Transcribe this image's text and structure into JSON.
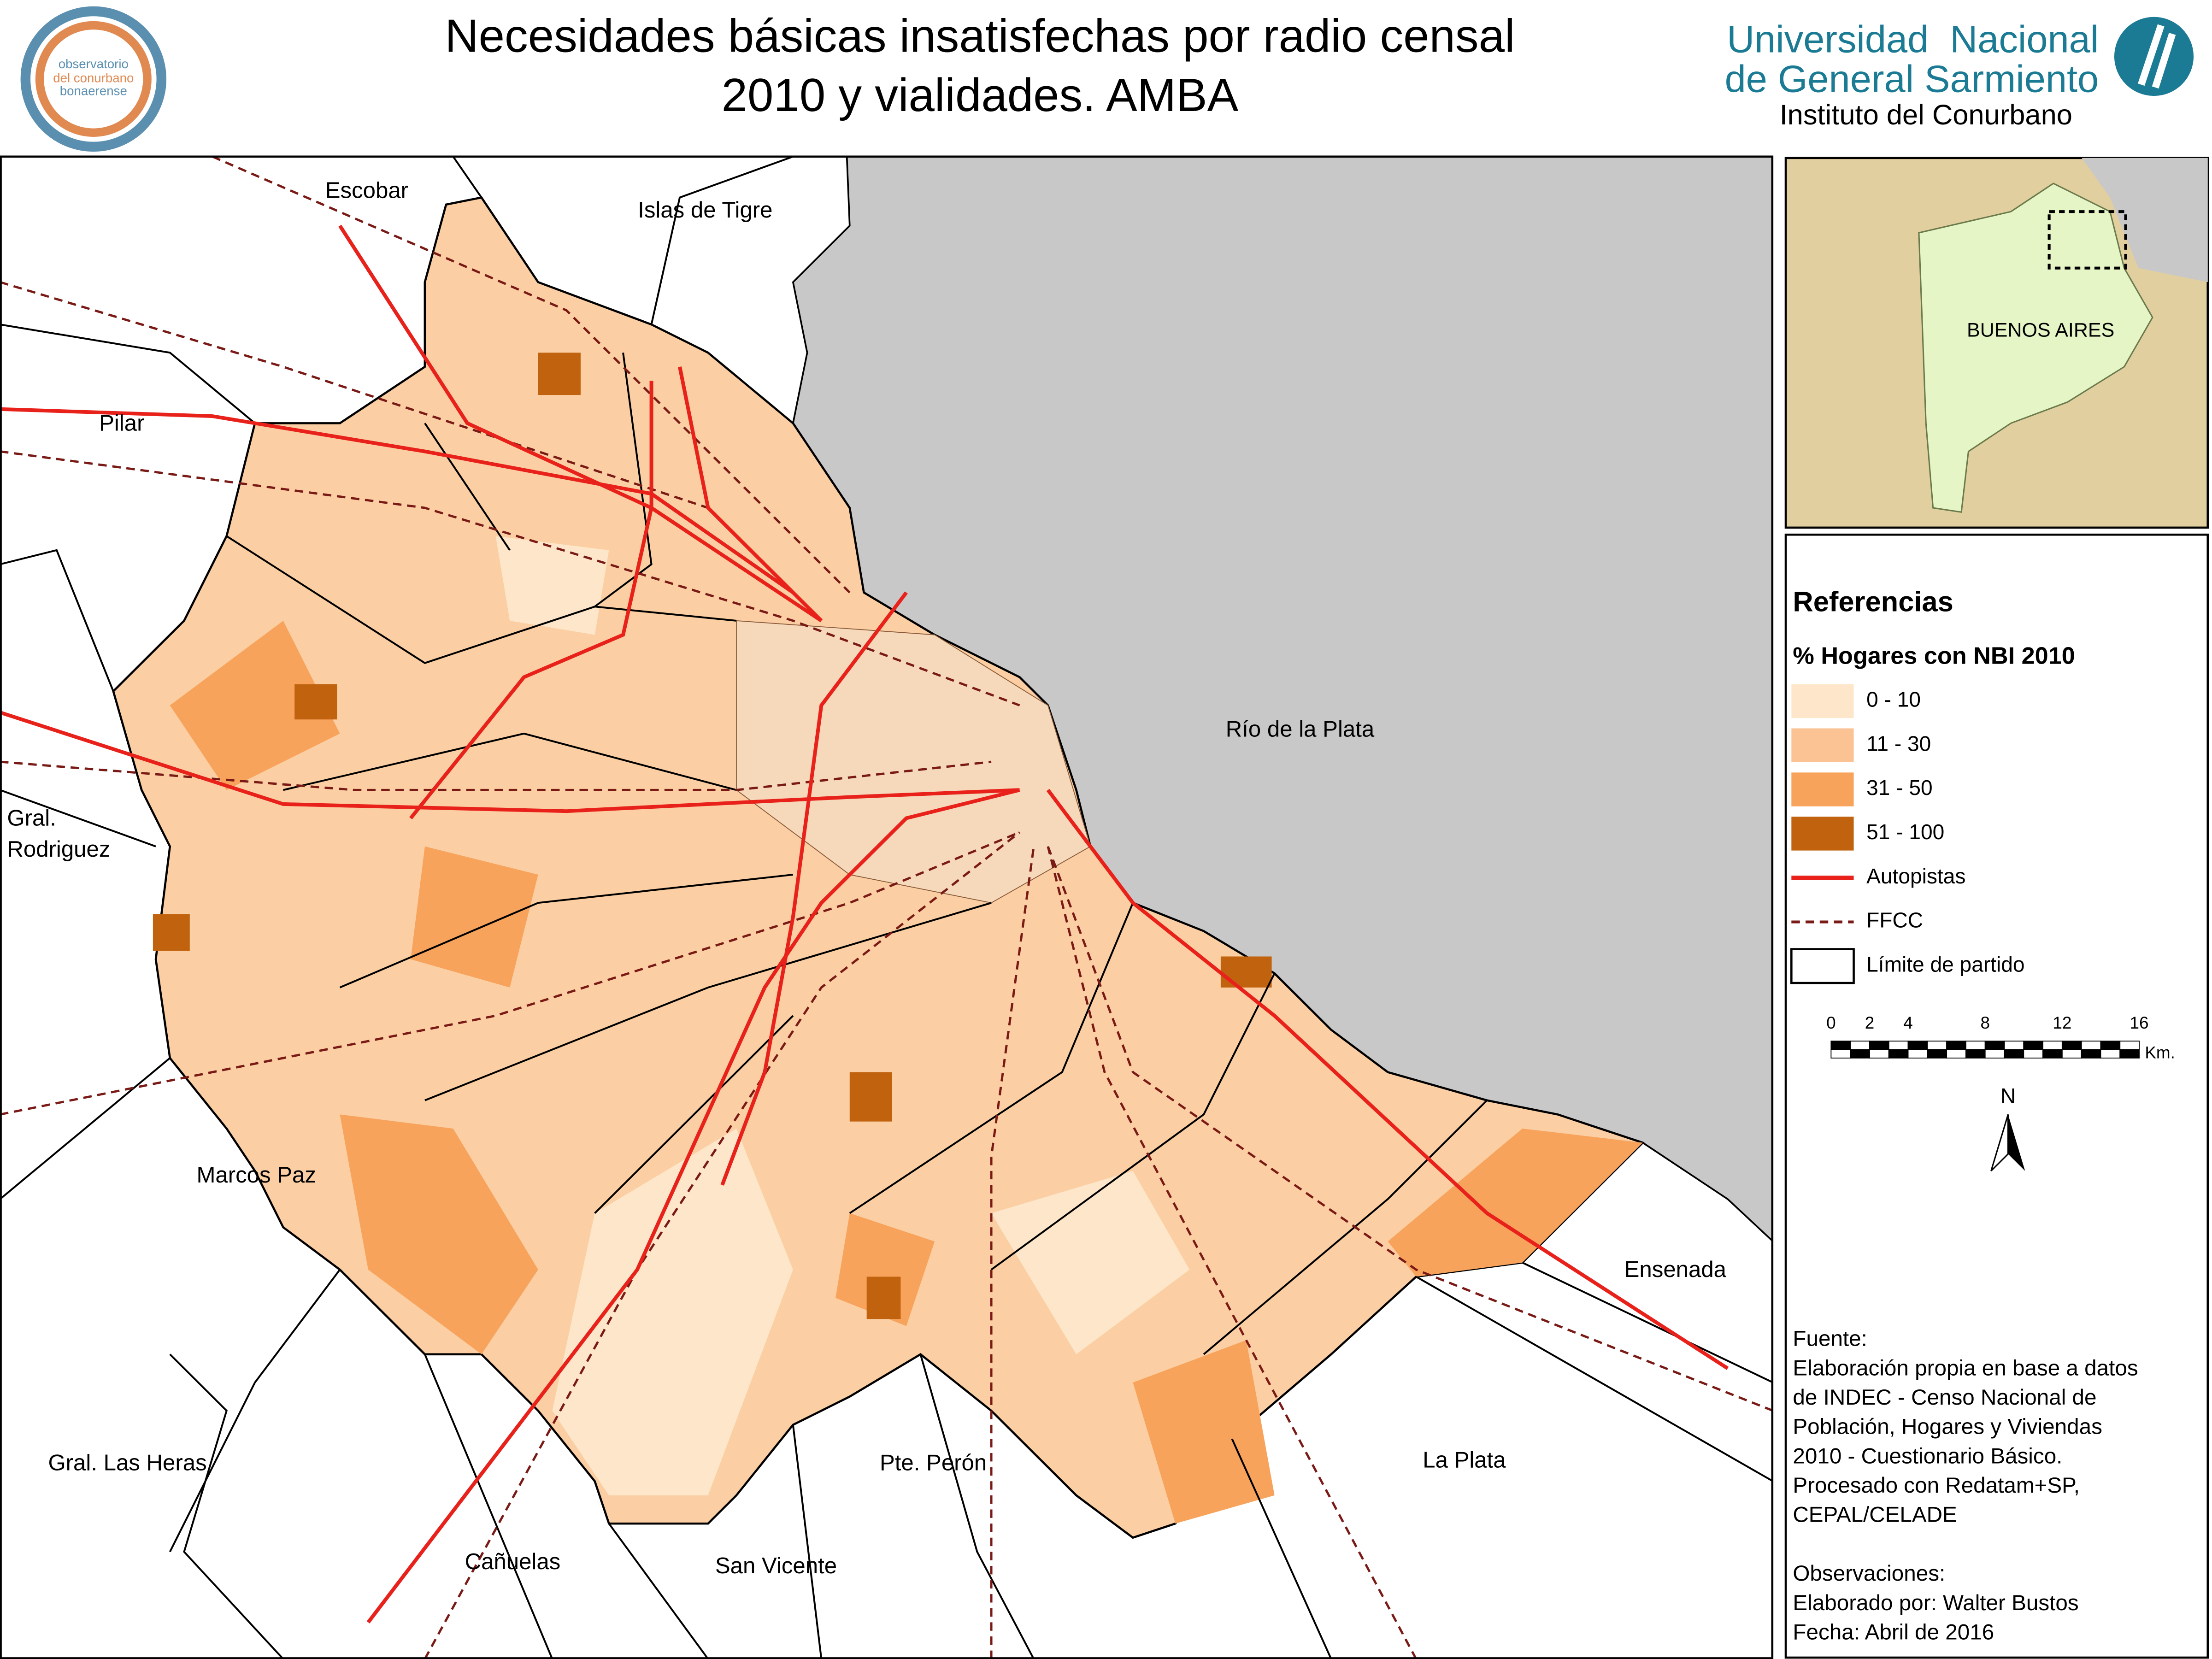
{
  "header": {
    "title_lines": [
      "Necesidades básicas insatisfechas por radio censal",
      "2010 y vialidades. AMBA"
    ],
    "logo_left": [
      "observatorio",
      "del conurbano",
      "bonaerense"
    ],
    "university": [
      "Universidad  Nacional",
      "de General Sarmiento"
    ],
    "institute": "Instituto del Conurbano"
  },
  "map": {
    "labels": [
      "Escobar",
      "Islas de Tigre",
      "Pilar",
      "Gral.",
      "Rodriguez",
      "Marcos Paz",
      "Gral. Las Heras",
      "Cañuelas",
      "San Vicente",
      "Pte. Perón",
      "La Plata",
      "Ensenada"
    ],
    "water": "Río de la Plata"
  },
  "inset": {
    "label": "BUENOS AIRES"
  },
  "legend": {
    "title": "Referencias",
    "subtitle": "% Hogares con NBI 2010",
    "items": [
      {
        "label": "0 - 10",
        "color": "#fde6c9"
      },
      {
        "label": "11 - 30",
        "color": "#fbc294"
      },
      {
        "label": "31 - 50",
        "color": "#f8a35c"
      },
      {
        "label": "51 - 100",
        "color": "#c0620e"
      },
      {
        "label": "Autopistas",
        "color": "#e8211b"
      },
      {
        "label": "FFCC",
        "color": "#7a1a16"
      },
      {
        "label": "Límite de partido",
        "color": "#000000"
      }
    ]
  },
  "scale": {
    "ticks": [
      "0",
      "2",
      "4",
      "8",
      "12",
      "16"
    ],
    "unit": "Km."
  },
  "north": "N",
  "source": {
    "lines": [
      "Fuente:",
      "Elaboración propia en base a datos",
      "de INDEC - Censo Nacional de",
      "Población, Hogares y Viviendas",
      "2010 - Cuestionario Básico.",
      "Procesado con Redatam+SP,",
      "CEPAL/CELADE",
      "",
      "Observaciones:",
      "Elaborado por: Walter Bustos",
      "Fecha: Abril de 2016"
    ]
  }
}
